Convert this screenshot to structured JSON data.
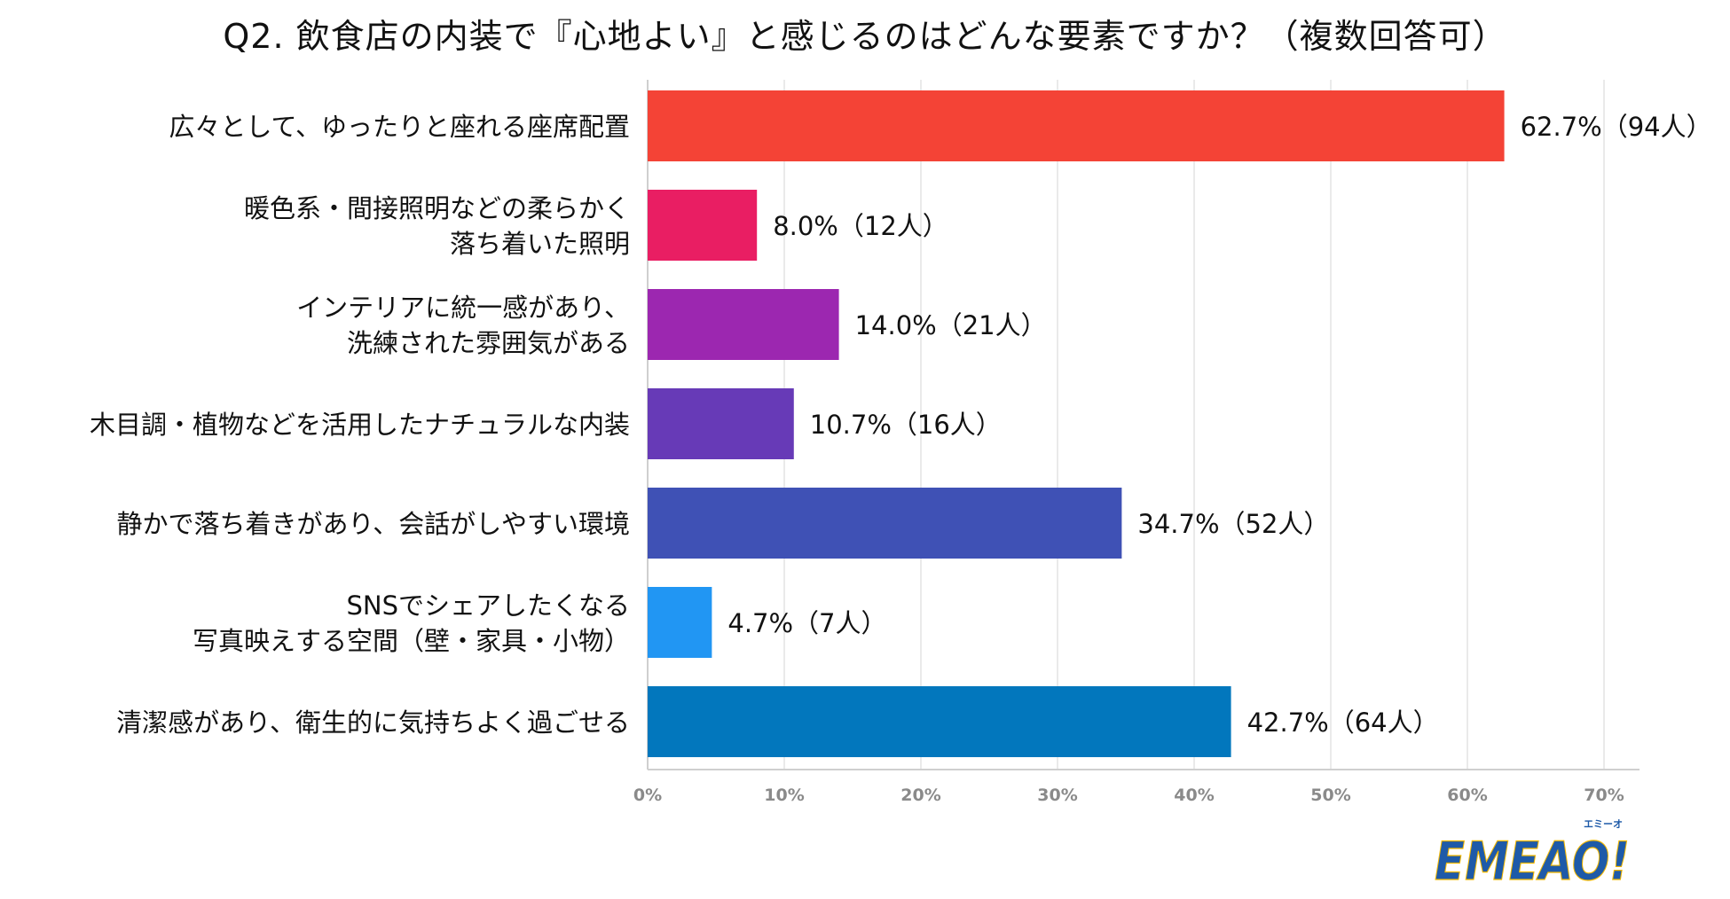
{
  "chart_data": {
    "type": "bar",
    "orientation": "horizontal",
    "title": "Q2. 飲食店の内装で『心地よい』と感じるのはどんな要素ですか？（複数回答可）",
    "categories": [
      [
        "広々として、ゆったりと座れる座席配置"
      ],
      [
        "暖色系・間接照明などの柔らかく",
        "落ち着いた照明"
      ],
      [
        "インテリアに統一感があり、",
        "洗練された雰囲気がある"
      ],
      [
        "木目調・植物などを活用したナチュラルな内装"
      ],
      [
        "静かで落ち着きがあり、会話がしやすい環境"
      ],
      [
        "SNSでシェアしたくなる",
        "写真映えする空間（壁・家具・小物）"
      ],
      [
        "清潔感があり、衛生的に気持ちよく過ごせる"
      ]
    ],
    "values": [
      62.7,
      8.0,
      14.0,
      10.7,
      34.7,
      4.7,
      42.7
    ],
    "data_labels": [
      "62.7%（94人）",
      "8.0%（12人）",
      "14.0%（21人）",
      "10.7%（16人）",
      "34.7%（52人）",
      "4.7%（7人）",
      "42.7%（64人）"
    ],
    "colors": [
      "#f44336",
      "#e91e63",
      "#9c27b0",
      "#673ab7",
      "#3f51b5",
      "#2196f3",
      "#0277bd"
    ],
    "xlim": [
      0,
      70
    ],
    "xticks": [
      0,
      10,
      20,
      30,
      40,
      50,
      60,
      70
    ],
    "xtick_labels": [
      "0%",
      "10%",
      "20%",
      "30%",
      "40%",
      "50%",
      "60%",
      "70%"
    ],
    "grid": true
  },
  "logo": {
    "text": "EMEAO!",
    "ruby": "エミーオ",
    "brand_color": "#1e5aa8",
    "accent_color": "#f5b800"
  }
}
